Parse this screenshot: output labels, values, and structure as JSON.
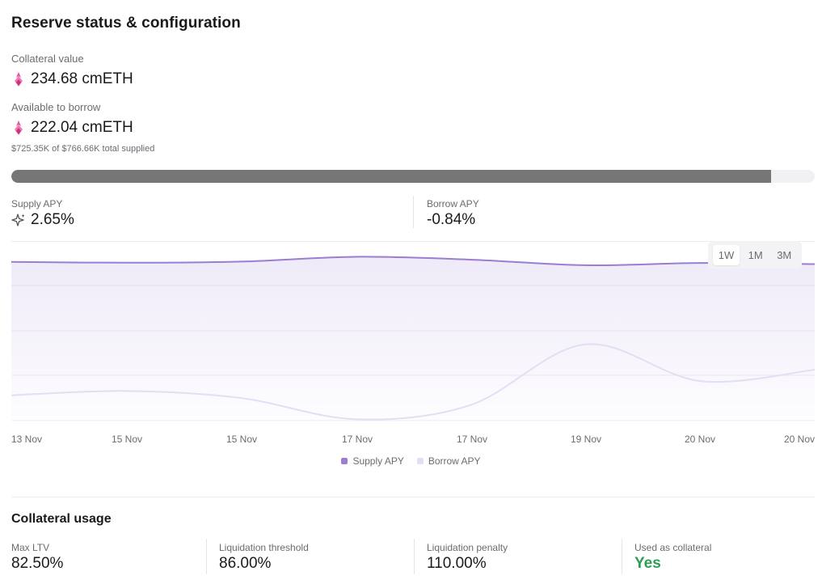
{
  "title": "Reserve status & configuration",
  "collateral": {
    "label": "Collateral value",
    "value": "234.68 cmETH"
  },
  "borrow": {
    "label": "Available to borrow",
    "value": "222.04 cmETH",
    "note": "$725.35K of $766.66K total supplied",
    "progress_fraction": 0.946
  },
  "apy": {
    "supply_label": "Supply APY",
    "supply_value": "2.65%",
    "borrow_label": "Borrow APY",
    "borrow_value": "-0.84%"
  },
  "timeframes": [
    "1W",
    "1M",
    "3M"
  ],
  "active_timeframe": "1W",
  "colors": {
    "supply": "#9b7dd4",
    "borrow": "#e4def4",
    "yes": "#2f9e55",
    "progress": "#767676"
  },
  "chart_data": {
    "type": "area",
    "x": [
      "13 Nov",
      "15 Nov",
      "15 Nov",
      "17 Nov",
      "17 Nov",
      "19 Nov",
      "20 Nov",
      "20 Nov"
    ],
    "series": [
      {
        "name": "Supply APY",
        "values": [
          2.62,
          2.59,
          2.63,
          2.8,
          2.7,
          2.5,
          2.58,
          2.54
        ]
      },
      {
        "name": "Borrow APY",
        "values": [
          -2.1,
          -1.95,
          -2.2,
          -2.95,
          -2.45,
          -0.3,
          -1.6,
          -1.2
        ]
      }
    ],
    "ylim": [
      -3.0,
      3.3
    ],
    "legend": [
      "Supply APY",
      "Borrow APY"
    ],
    "legend_position": "bottom-center",
    "grid": true
  },
  "collateral_usage": {
    "title": "Collateral usage",
    "stats": [
      {
        "label": "Max LTV",
        "value": "82.50%"
      },
      {
        "label": "Liquidation threshold",
        "value": "86.00%"
      },
      {
        "label": "Liquidation penalty",
        "value": "110.00%"
      },
      {
        "label": "Used as collateral",
        "value": "Yes"
      }
    ]
  }
}
